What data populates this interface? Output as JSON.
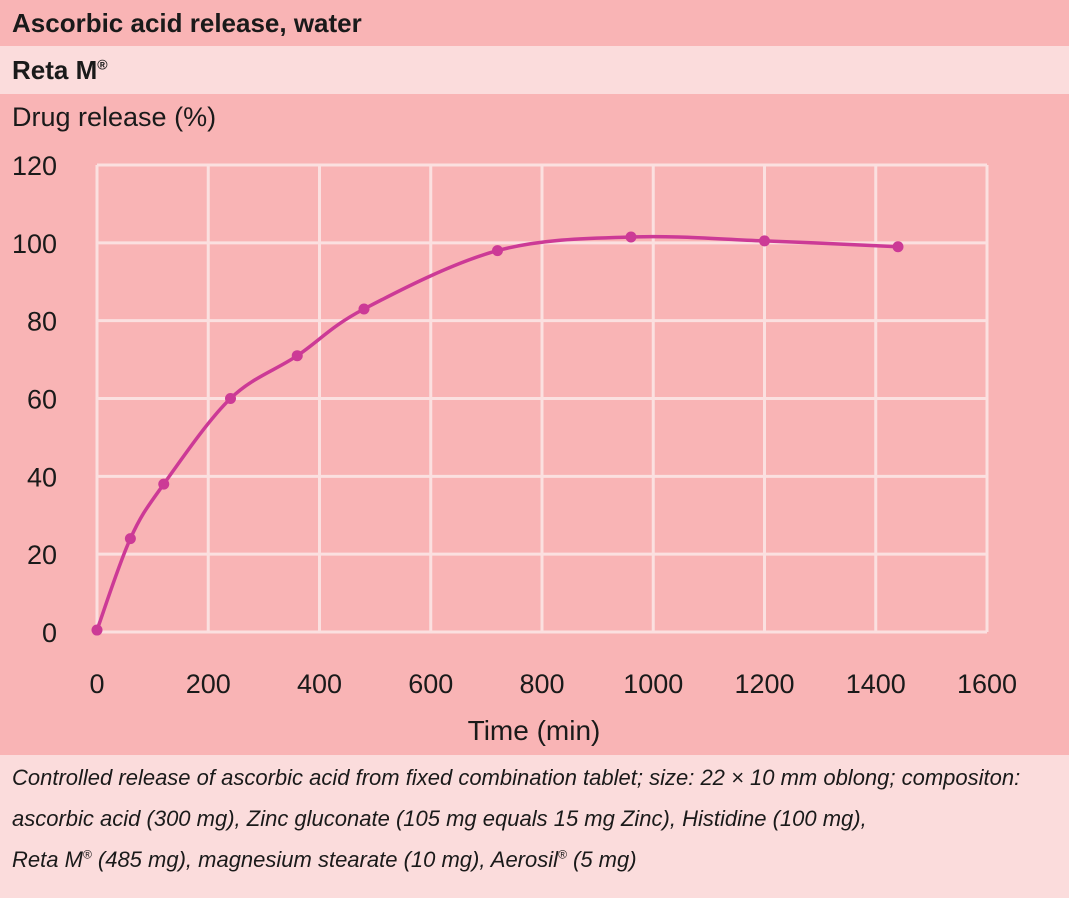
{
  "header": {
    "title": "Ascorbic acid release, water",
    "subtitle_main": "Reta M",
    "subtitle_mark": "®"
  },
  "caption": {
    "line1": "Controlled release of ascorbic acid from fixed combination tablet; size: 22 × 10 mm oblong; compositon:",
    "line2": "ascorbic acid (300 mg), Zinc gluconate (105 mg equals 15 mg Zinc), Histidine (100 mg),",
    "line3_a": "Reta M",
    "line3_mark1": "®",
    "line3_b": " (485 mg), magnesium stearate (10 mg), Aerosil",
    "line3_mark2": "®",
    "line3_c": " (5 mg)"
  },
  "colors": {
    "curve": "#cc3a96",
    "grid": "#fbe0e0",
    "panel": "#f9b4b5"
  },
  "chart_data": {
    "type": "line",
    "title": "",
    "xlabel": "Time (min)",
    "ylabel": "Drug release (%)",
    "xlim": [
      0,
      1600
    ],
    "ylim": [
      0,
      120
    ],
    "xticks": [
      0,
      200,
      400,
      600,
      800,
      1000,
      1200,
      1400,
      1600
    ],
    "yticks": [
      0,
      20,
      40,
      60,
      80,
      100,
      120
    ],
    "grid": true,
    "series": [
      {
        "x": [
          0,
          60,
          120,
          240,
          360,
          480,
          720,
          960,
          1200,
          1440
        ],
        "y": [
          0.5,
          24,
          38,
          60,
          71,
          83,
          98,
          101.5,
          100.5,
          99
        ]
      }
    ]
  }
}
